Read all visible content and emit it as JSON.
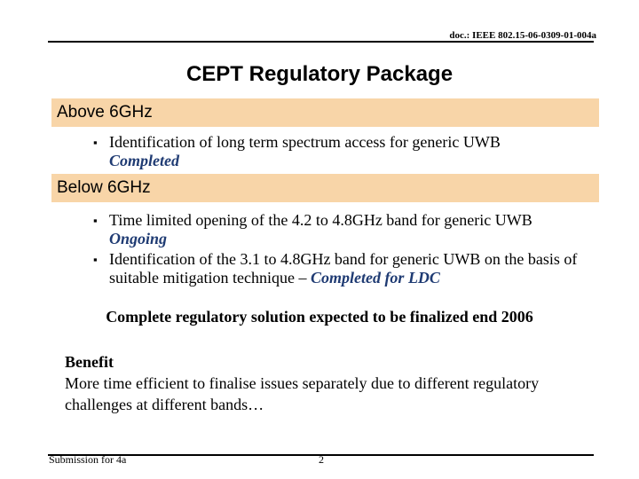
{
  "header": {
    "doc_id": "doc.: IEEE 802.15-06-0309-01-004a"
  },
  "title": "CEPT Regulatory Package",
  "sections": [
    {
      "label": "Above 6GHz",
      "bullets": [
        {
          "text": "Identification of long term spectrum access for generic UWB",
          "status": "Completed"
        }
      ]
    },
    {
      "label": "Below 6GHz",
      "bullets": [
        {
          "text": "Time limited opening of the 4.2 to 4.8GHz band for generic UWB",
          "status": "Ongoing"
        },
        {
          "text": "Identification of the 3.1 to 4.8GHz band for generic UWB on the basis of suitable mitigation technique –",
          "status": "Completed for LDC"
        }
      ]
    }
  ],
  "conclusion": "Complete regulatory solution expected to be finalized end 2006",
  "benefit": {
    "heading": "Benefit",
    "text": "More time efficient to finalise issues separately due to different regulatory challenges at different bands…"
  },
  "footer": {
    "left": "Submission for 4a",
    "page": "2"
  },
  "colors": {
    "band_fill": "#f8d5a8",
    "status_text": "#1f3b73"
  }
}
